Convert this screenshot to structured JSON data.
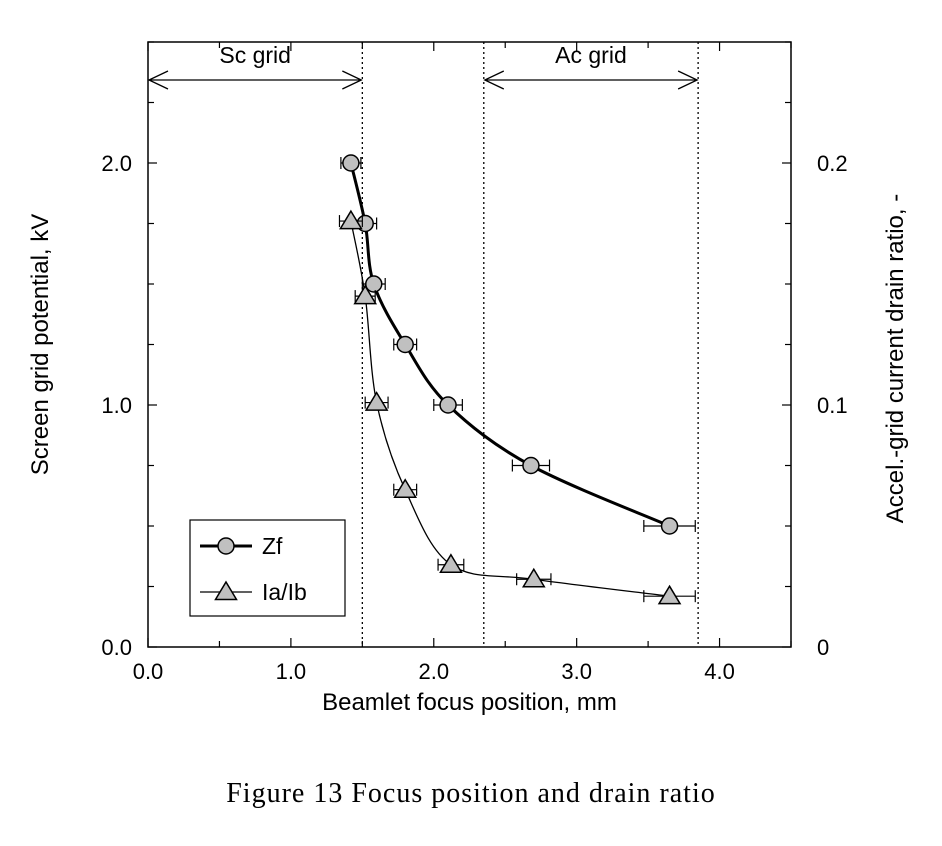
{
  "caption": "Figure 13  Focus position and drain ratio",
  "chart_data": {
    "type": "scatter",
    "xlabel": "Beamlet focus position, mm",
    "ylabel": "Screen grid potential, kV",
    "y2label": "Accel.-grid current drain ratio, -",
    "xlim": [
      0.0,
      4.5
    ],
    "ylim": [
      0.0,
      2.0
    ],
    "y2lim": [
      0.0,
      0.2
    ],
    "x_ticks": [
      "0.0",
      "1.0",
      "2.0",
      "3.0",
      "4.0"
    ],
    "y_ticks": [
      "0.0",
      "1.0",
      "2.0"
    ],
    "y2_ticks": [
      "0",
      "0.1",
      "0.2"
    ],
    "grid": false,
    "legend_position": "bottom-left",
    "regions": [
      {
        "label": "Sc grid",
        "x_start": 0.0,
        "x_end": 1.5
      },
      {
        "label": "Ac grid",
        "x_start": 2.35,
        "x_end": 3.85
      }
    ],
    "series": [
      {
        "name": "Zf",
        "axis": "left",
        "marker": "circle",
        "line": "thick",
        "x": [
          1.42,
          1.52,
          1.58,
          1.8,
          2.1,
          2.68,
          3.65
        ],
        "y": [
          2.0,
          1.75,
          1.5,
          1.25,
          1.0,
          0.75,
          0.5
        ],
        "x_err": [
          0.07,
          0.08,
          0.08,
          0.08,
          0.1,
          0.13,
          0.18
        ]
      },
      {
        "name": "Ia/Ib",
        "axis": "right",
        "marker": "triangle",
        "line": "thin",
        "x": [
          1.42,
          1.52,
          1.6,
          1.8,
          2.12,
          2.7,
          3.65
        ],
        "y": [
          0.176,
          0.145,
          0.101,
          0.065,
          0.034,
          0.028,
          0.021
        ],
        "x_err": [
          0.08,
          0.07,
          0.08,
          0.08,
          0.09,
          0.12,
          0.18
        ]
      }
    ]
  }
}
